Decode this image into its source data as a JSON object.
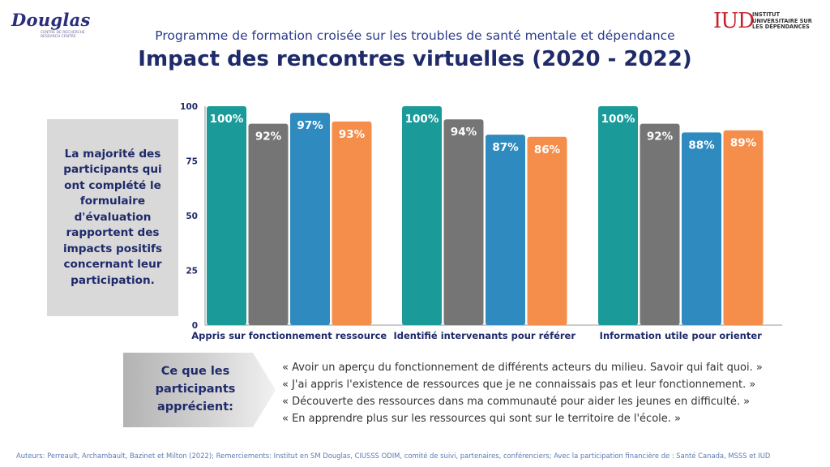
{
  "logos": {
    "douglas": {
      "word": "Douglas",
      "sub": "CENTRE DE RECHERCHE RESEARCH CENTRE"
    },
    "iud": {
      "mark": "IUD",
      "text": "INSTITUT UNIVERSITAIRE SUR LES DÉPENDANCES"
    }
  },
  "header": {
    "subtitle": "Programme de formation croisée sur les troubles de santé mentale et dépendance",
    "title": "Impact des rencontres virtuelles (2020 - 2022)"
  },
  "left_box": {
    "text": "La majorité des participants qui ont complété le formulaire d'évaluation rapportent des impacts positifs concernant leur participation."
  },
  "chart_data": {
    "type": "bar",
    "categories": [
      "Appris sur fonctionnement ressource",
      "Identifié intervenants pour référer",
      "Information utile pour orienter"
    ],
    "series": [
      {
        "values": [
          100,
          100,
          100
        ],
        "labels": [
          "100%",
          "100%",
          "100%"
        ],
        "color": "#1b9a9a"
      },
      {
        "values": [
          92,
          94,
          92
        ],
        "labels": [
          "92%",
          "94%",
          "92%"
        ],
        "color": "#757575"
      },
      {
        "values": [
          97,
          87,
          88
        ],
        "labels": [
          "97%",
          "87%",
          "88%"
        ],
        "color": "#2f8bbf"
      },
      {
        "values": [
          93,
          86,
          89
        ],
        "labels": [
          "93%",
          "86%",
          "89%"
        ],
        "color": "#f58e4b"
      }
    ],
    "yticks": [
      0,
      25,
      50,
      75,
      100
    ],
    "ylim": [
      0,
      100
    ],
    "grid": false,
    "legend": "none"
  },
  "appreciate": {
    "label": "Ce que les participants apprécient:",
    "quotes": [
      "« Avoir un aperçu du fonctionnement de différents acteurs du milieu. Savoir qui fait quoi. »",
      "« J'ai appris l'existence de ressources que je ne connaissais pas et leur fonctionnement. »",
      "« Découverte des ressources dans ma communauté pour aider les jeunes en difficulté. »",
      "« En apprendre plus sur les ressources qui sont sur le territoire de l'école. »"
    ]
  },
  "footer": "Auteurs: Perreault, Archambault, Bazinet et Milton (2022); Remerciements: Institut en SM Douglas, CIUSSS ODIM,  comité de suivi, partenaires, conférenciers; Avec la participation financière de : Santé Canada, MSSS et IUD"
}
